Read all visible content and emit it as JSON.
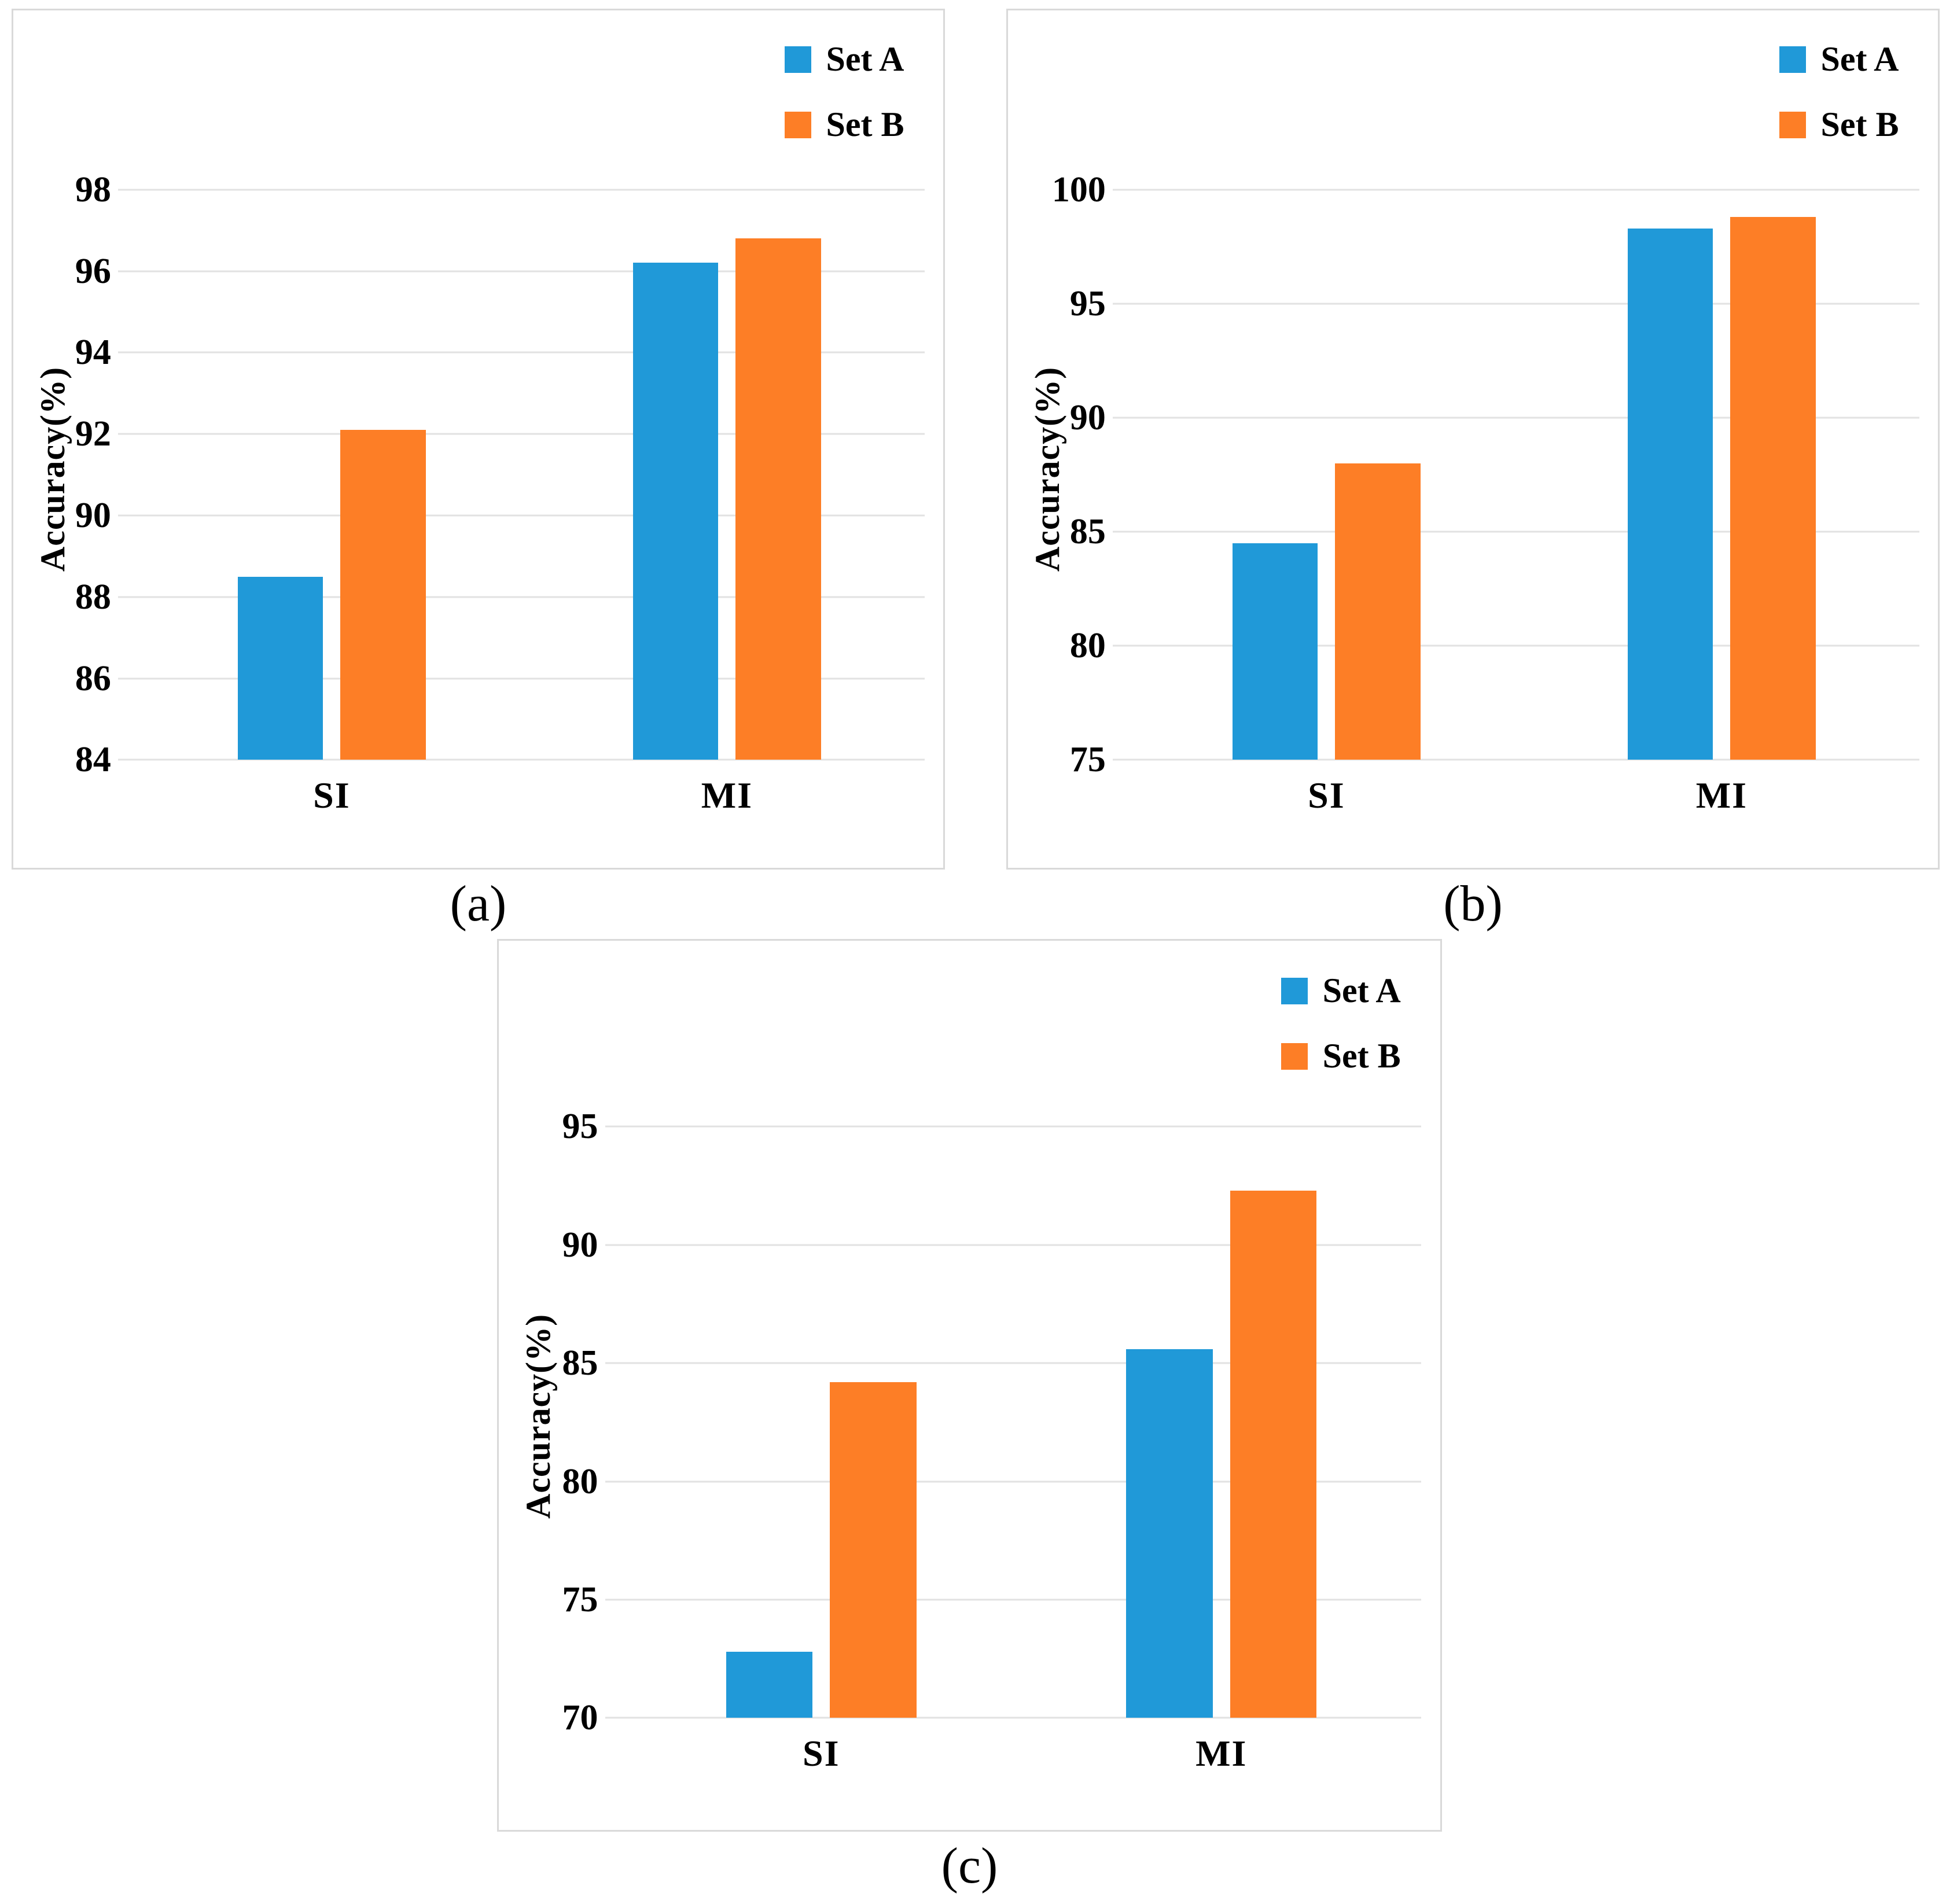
{
  "figure": {
    "type": "three-panel bar chart figure",
    "accent_colors": {
      "set_a_blue": "#2099D8",
      "set_b_orange": "#FD7E26"
    },
    "gridline_color": "#E2E2E2",
    "panel_border_color": "#D9D9D9"
  },
  "chart_data": [
    {
      "id": "a",
      "type": "bar",
      "caption": "(a)",
      "ylabel": "Accuracy(%)",
      "categories": [
        "SI",
        "MI"
      ],
      "series": [
        {
          "name": "Set A",
          "color": "#2099D8",
          "values": [
            88.5,
            96.2
          ]
        },
        {
          "name": "Set B",
          "color": "#FD7E26",
          "values": [
            92.1,
            96.8
          ]
        }
      ],
      "ylim": [
        84,
        98
      ],
      "yticks": [
        84,
        86,
        88,
        90,
        92,
        94,
        96,
        98
      ],
      "grid": true,
      "legend_position": "top-right"
    },
    {
      "id": "b",
      "type": "bar",
      "caption": "(b)",
      "ylabel": "Accuracy(%)",
      "categories": [
        "SI",
        "MI"
      ],
      "series": [
        {
          "name": "Set A",
          "color": "#2099D8",
          "values": [
            84.5,
            98.3
          ]
        },
        {
          "name": "Set B",
          "color": "#FD7E26",
          "values": [
            88.0,
            98.8
          ]
        }
      ],
      "ylim": [
        75,
        100
      ],
      "yticks": [
        75,
        80,
        85,
        90,
        95,
        100
      ],
      "grid": true,
      "legend_position": "top-right"
    },
    {
      "id": "c",
      "type": "bar",
      "caption": "(c)",
      "ylabel": "Accuracy(%)",
      "categories": [
        "SI",
        "MI"
      ],
      "series": [
        {
          "name": "Set A",
          "color": "#2099D8",
          "values": [
            72.8,
            85.6
          ]
        },
        {
          "name": "Set B",
          "color": "#FD7E26",
          "values": [
            84.2,
            92.3
          ]
        }
      ],
      "ylim": [
        70,
        95
      ],
      "yticks": [
        70,
        75,
        80,
        85,
        90,
        95
      ],
      "grid": true,
      "legend_position": "top-right"
    }
  ]
}
